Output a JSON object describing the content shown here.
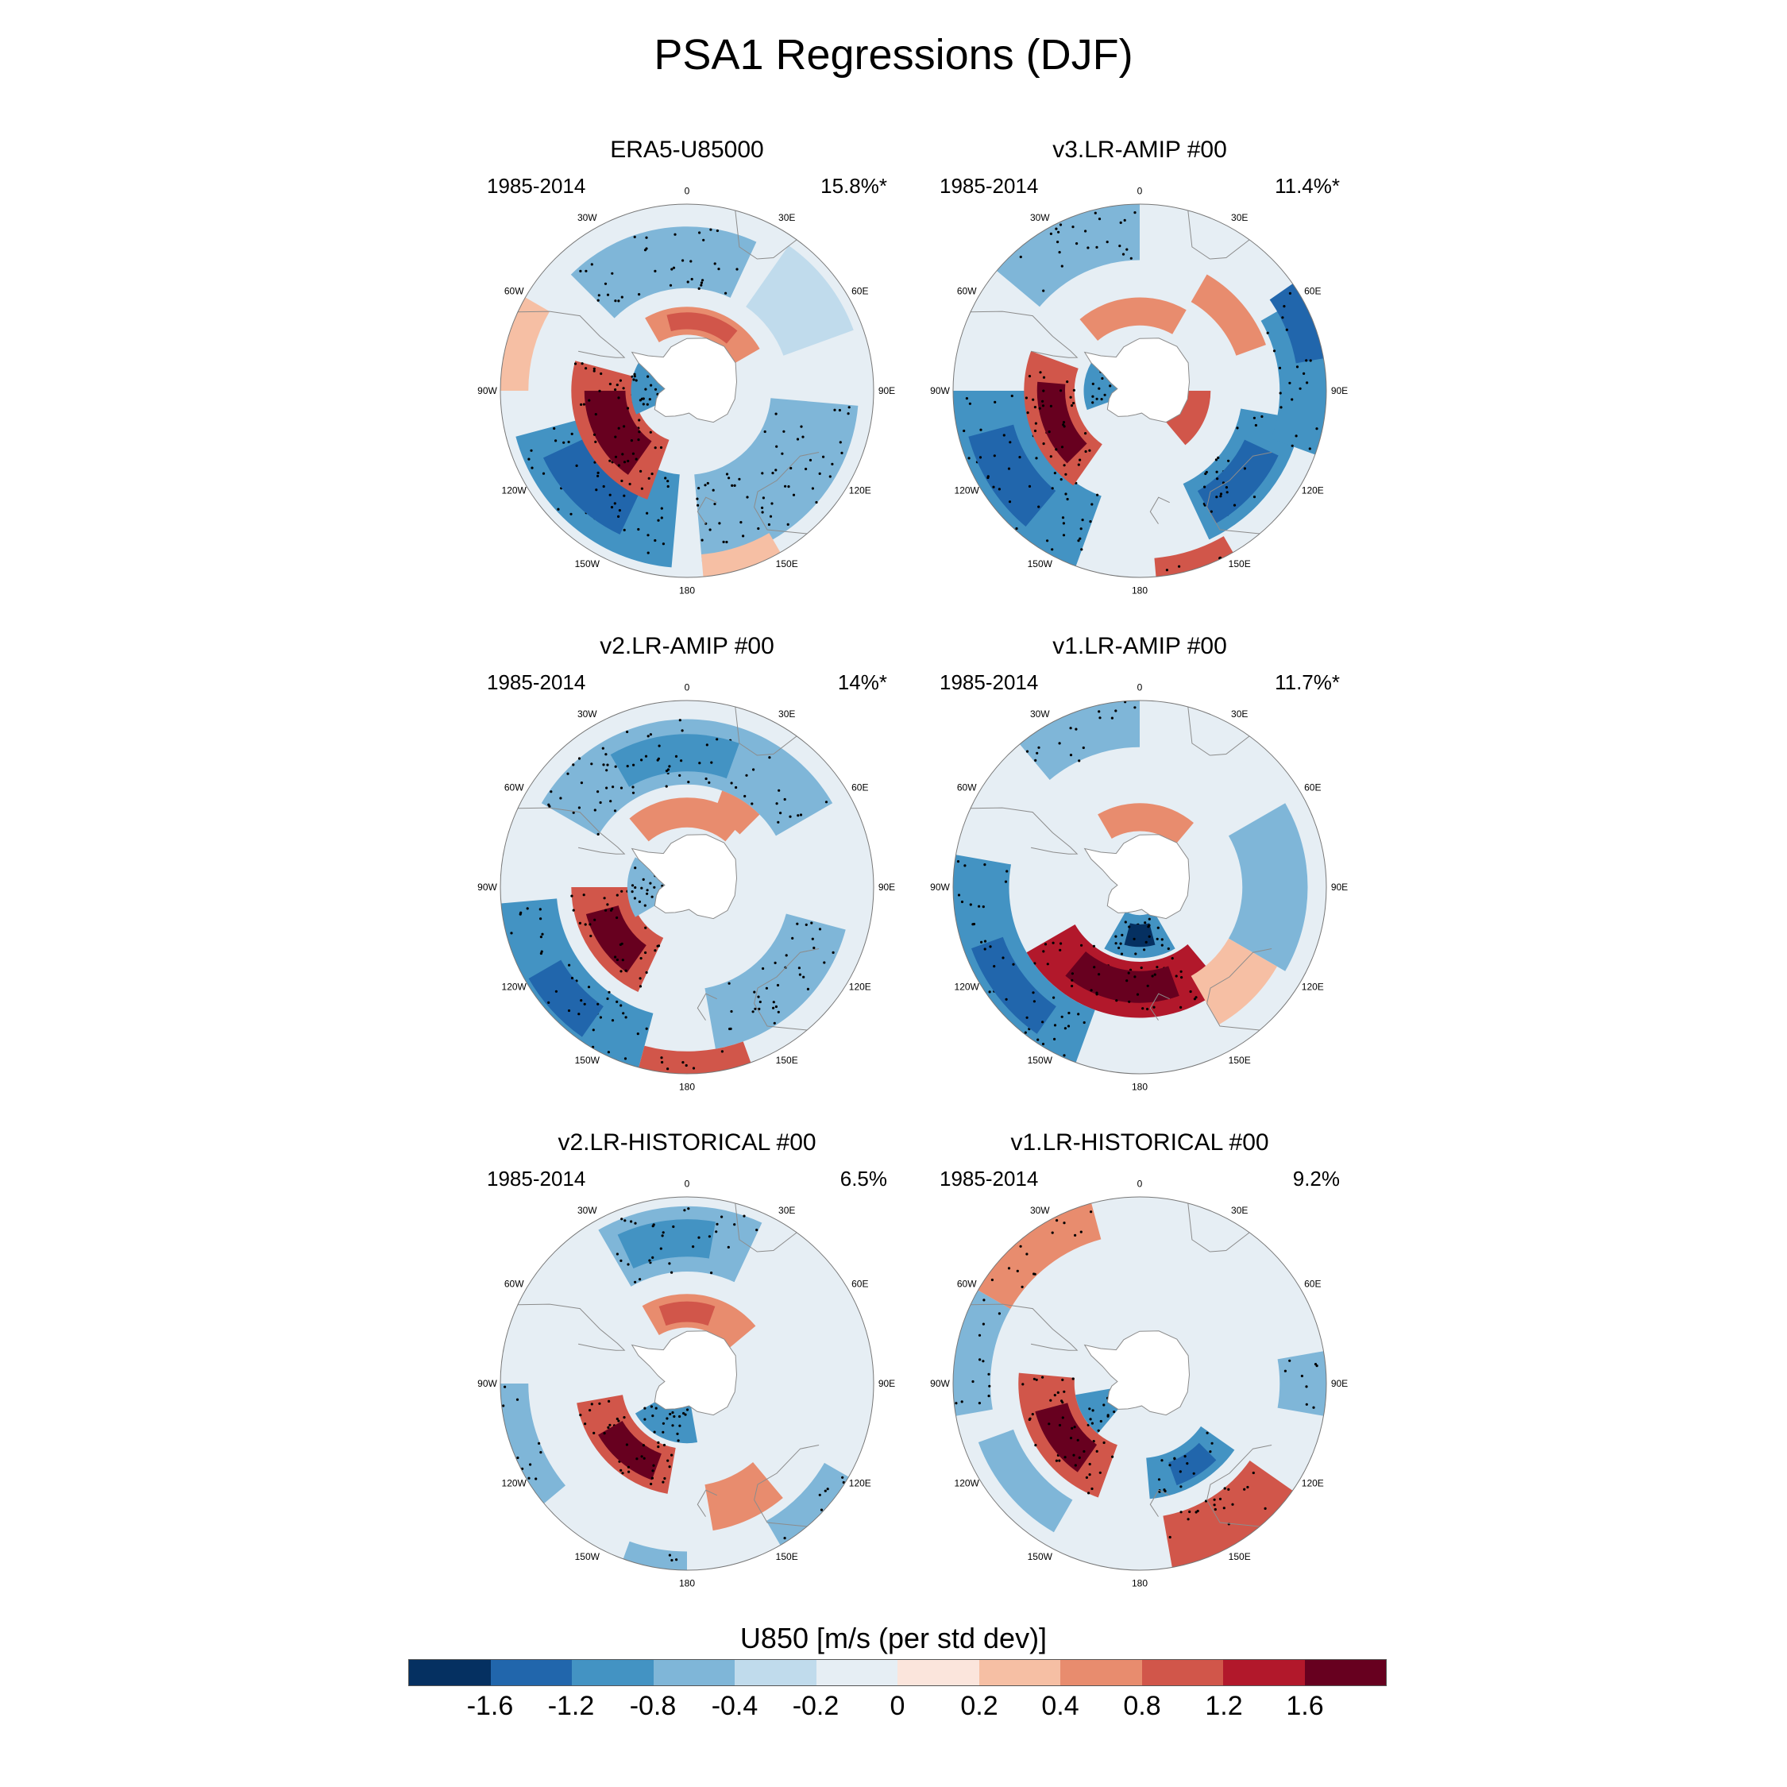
{
  "title": "PSA1 Regressions (DJF)",
  "panels": [
    {
      "title": "ERA5-U85000",
      "years": "1985-2014",
      "pct": "15.8%*",
      "pattern": "era5"
    },
    {
      "title": "v3.LR-AMIP  #00",
      "years": "1985-2014",
      "pct": "11.4%*",
      "pattern": "v3amip"
    },
    {
      "title": "v2.LR-AMIP  #00",
      "years": "1985-2014",
      "pct": "14%*",
      "pattern": "v2amip"
    },
    {
      "title": "v1.LR-AMIP  #00",
      "years": "1985-2014",
      "pct": "11.7%*",
      "pattern": "v1amip"
    },
    {
      "title": "v2.LR-HISTORICAL  #00",
      "years": "1985-2014",
      "pct": "6.5%",
      "pattern": "v2hist"
    },
    {
      "title": "v1.LR-HISTORICAL  #00",
      "years": "1985-2014",
      "pct": "9.2%",
      "pattern": "v1hist"
    }
  ],
  "lon_labels": [
    "0",
    "30E",
    "60E",
    "90E",
    "120E",
    "150E",
    "180",
    "150W",
    "120W",
    "90W",
    "60W",
    "30W"
  ],
  "colorbar": {
    "title": "U850 [m/s (per std dev)]",
    "labels": [
      "-1.6",
      "-1.2",
      "-0.8",
      "-0.4",
      "-0.2",
      "0",
      "0.2",
      "0.4",
      "0.8",
      "1.2",
      "1.6"
    ],
    "colors": [
      "#053061",
      "#2166ac",
      "#4393c3",
      "#7fb6d8",
      "#c0dbec",
      "#e6eef4",
      "#fbe5dc",
      "#f6bfa4",
      "#e88c6e",
      "#d1564a",
      "#b2182b",
      "#67001f"
    ]
  },
  "map_colors": {
    "ocean": "#e6eef4",
    "land": "#ffffff",
    "coast": "#8c8c8c",
    "stipple": "#000000"
  }
}
